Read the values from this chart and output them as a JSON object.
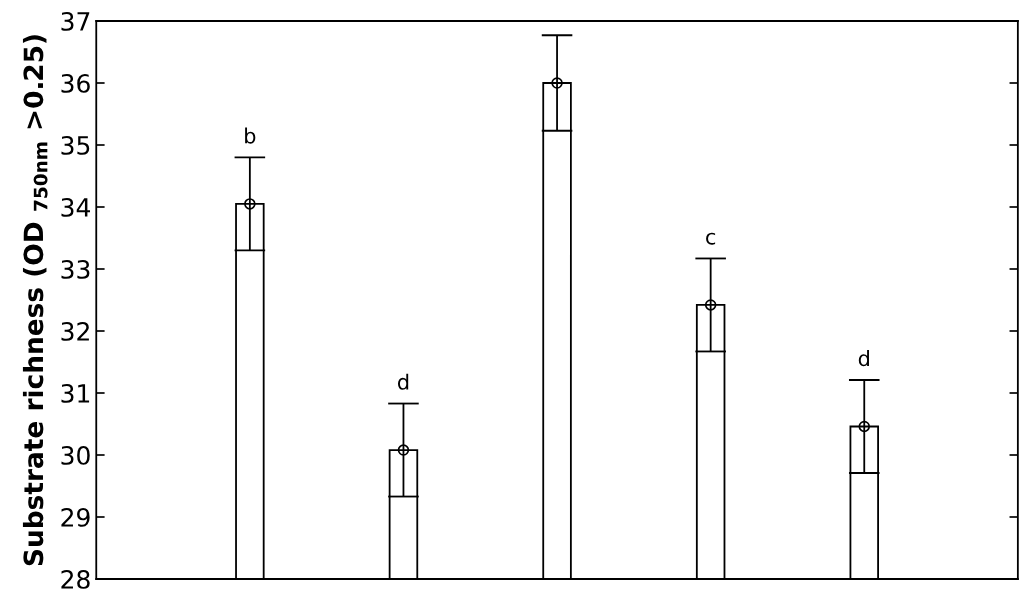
{
  "chart_data": {
    "type": "bar",
    "ylabel": "Substrate richness (OD $_{750nm}$ >0.25)",
    "categories": [
      null,
      null,
      null,
      null,
      null
    ],
    "series": [
      {
        "color": "#ffffff",
        "values": [
          34.05,
          30.08,
          36.0,
          32.42,
          30.46
        ]
      },
      {
        "type": "scatter",
        "color": "#000000",
        "values": [
          34.05,
          30.08,
          36.0,
          32.42,
          30.46
        ],
        "errors": [
          0.75,
          0.75,
          0.77,
          0.75,
          0.75
        ],
        "value_labels": [
          "b",
          "d",
          null,
          "c",
          "d"
        ]
      }
    ],
    "marker": "circle",
    "ylim": [
      28,
      37
    ],
    "yticks": [
      28,
      29,
      30,
      31,
      32,
      33,
      34,
      35,
      36,
      37
    ],
    "grid": false,
    "legend": false
  }
}
